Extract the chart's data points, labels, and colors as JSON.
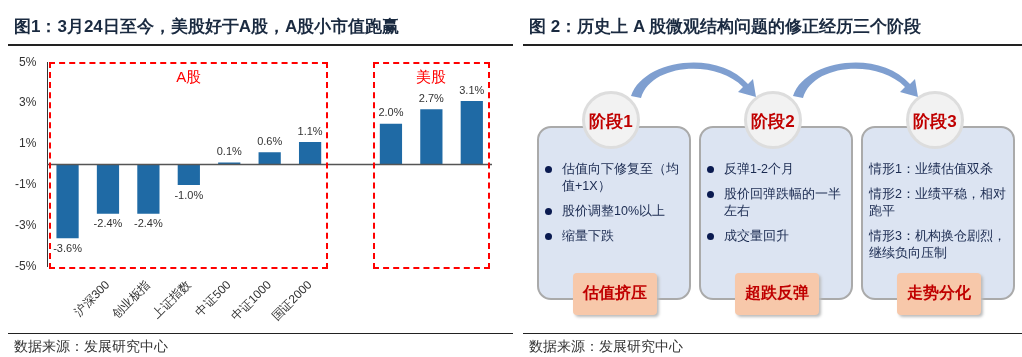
{
  "chart_data": [
    {
      "type": "bar",
      "title": "图1：3月24日至今，美股好于A股，A股小市值跑赢",
      "categories": [
        null,
        "沪深300",
        "创业板指",
        "上证指数",
        "中证500",
        "中证1000",
        "国证2000",
        null,
        null,
        null,
        null
      ],
      "values": [
        -3.6,
        -2.4,
        -2.4,
        -1.0,
        0.1,
        0.6,
        1.1,
        null,
        2.0,
        2.7,
        3.1
      ],
      "value_labels": [
        "-3.6%",
        "-2.4%",
        "-2.4%",
        "-1.0%",
        "0.1%",
        "0.6%",
        "1.1%",
        null,
        "2.0%",
        "2.7%",
        "3.1%"
      ],
      "color": "#1f6aa5",
      "ylim": [
        -5,
        5
      ],
      "yticks": [
        {
          "value": -5,
          "label": "-5%"
        },
        {
          "value": -3,
          "label": "-3%"
        },
        {
          "value": -1,
          "label": "-1%"
        },
        {
          "value": 1,
          "label": "1%"
        },
        {
          "value": 3,
          "label": "3%"
        },
        {
          "value": 5,
          "label": "5%"
        }
      ],
      "grid": false,
      "legend": false,
      "annotations": [
        "A股",
        "美股",
        "数据来源：发展研究中心"
      ]
    },
    {
      "type": "other",
      "title": "图 2：历史上 A 股微观结构问题的修正经历三个阶段",
      "annotations": [
        "数据来源：发展研究中心"
      ]
    },
    {
      "type": "other",
      "title": "阶段1",
      "subtitle": "估值挤压",
      "annotations": [
        "估值向下修复至（均值+1X）",
        "股价调整10%以上",
        "缩量下跌"
      ]
    },
    {
      "type": "other",
      "title": "阶段2",
      "subtitle": "超跌反弹",
      "annotations": [
        "反弹1-2个月",
        "股价回弹跌幅的一半左右",
        "成交量回升"
      ]
    },
    {
      "type": "other",
      "title": "阶段3",
      "subtitle": "走势分化",
      "annotations": [
        "情形1：业绩估值双杀",
        "情形2：业绩平稳，相对跑平",
        "情形3：机构换仓剧烈，继续负向压制"
      ]
    }
  ]
}
